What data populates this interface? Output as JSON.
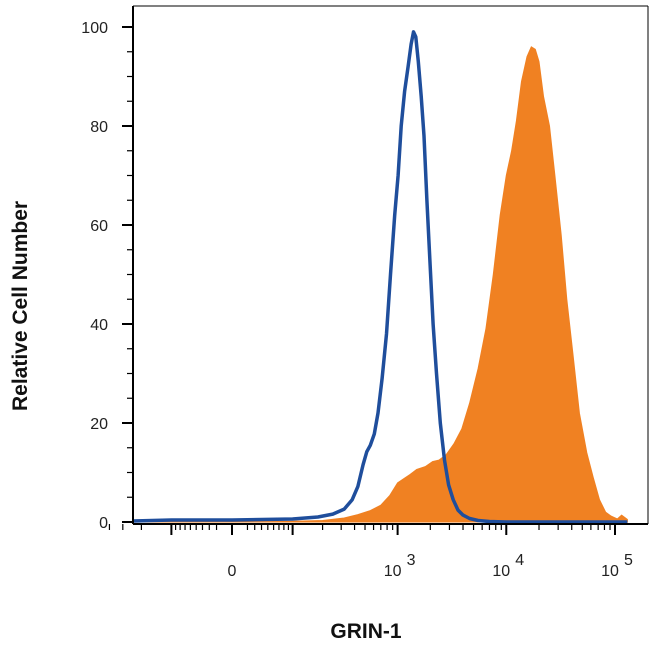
{
  "chart_data": {
    "type": "area",
    "title": "",
    "xlabel": "GRIN-1",
    "ylabel": "Relative Cell Number",
    "x_scale": "biexponential",
    "xlim": [
      -400,
      130000
    ],
    "ylim": [
      0,
      100
    ],
    "x_ticks": [
      {
        "value": 0,
        "label": "0",
        "exp": ""
      },
      {
        "value": 1000,
        "label": "10",
        "exp": "3"
      },
      {
        "value": 10000,
        "label": "10",
        "exp": "4"
      },
      {
        "value": 100000,
        "label": "10",
        "exp": "5"
      }
    ],
    "y_ticks": [
      0,
      20,
      40,
      60,
      80,
      100
    ],
    "grid": false,
    "series": [
      {
        "style": "filled",
        "color": "#F08122",
        "points": [
          [
            -400,
            0
          ],
          [
            0,
            0
          ],
          [
            80,
            0.1
          ],
          [
            200,
            0.3
          ],
          [
            320,
            0.8
          ],
          [
            430,
            1.5
          ],
          [
            560,
            2.3
          ],
          [
            700,
            3.4
          ],
          [
            850,
            5.4
          ],
          [
            1000,
            7.9
          ],
          [
            1150,
            8.8
          ],
          [
            1300,
            9.6
          ],
          [
            1500,
            10.6
          ],
          [
            1800,
            11.2
          ],
          [
            2100,
            12.2
          ],
          [
            2400,
            12.5
          ],
          [
            2800,
            13.6
          ],
          [
            3300,
            15.8
          ],
          [
            3900,
            18.8
          ],
          [
            4600,
            24
          ],
          [
            5500,
            31
          ],
          [
            6500,
            39
          ],
          [
            7600,
            50
          ],
          [
            8800,
            62
          ],
          [
            10000,
            70
          ],
          [
            11200,
            75
          ],
          [
            12400,
            81
          ],
          [
            13800,
            89
          ],
          [
            15500,
            94
          ],
          [
            17000,
            96
          ],
          [
            18500,
            95.5
          ],
          [
            20000,
            93
          ],
          [
            22000,
            86
          ],
          [
            25000,
            80
          ],
          [
            28000,
            70
          ],
          [
            32000,
            58
          ],
          [
            36000,
            45
          ],
          [
            41000,
            34
          ],
          [
            47000,
            22
          ],
          [
            55000,
            14
          ],
          [
            63000,
            9
          ],
          [
            72000,
            4.5
          ],
          [
            82000,
            2
          ],
          [
            92000,
            1.2
          ],
          [
            105000,
            0.6
          ],
          [
            115000,
            1.4
          ],
          [
            125000,
            0.8
          ],
          [
            130000,
            0.5
          ]
        ]
      },
      {
        "style": "outline",
        "color": "#1F4E9C",
        "points": [
          [
            -400,
            0.3
          ],
          [
            -250,
            0.2
          ],
          [
            -100,
            0.4
          ],
          [
            0,
            0.4
          ],
          [
            100,
            0.6
          ],
          [
            180,
            1.0
          ],
          [
            250,
            1.6
          ],
          [
            320,
            2.6
          ],
          [
            380,
            4.5
          ],
          [
            430,
            7.2
          ],
          [
            480,
            11.6
          ],
          [
            520,
            14.2
          ],
          [
            560,
            15.5
          ],
          [
            610,
            17.8
          ],
          [
            660,
            22
          ],
          [
            720,
            29
          ],
          [
            790,
            38
          ],
          [
            860,
            50
          ],
          [
            940,
            62
          ],
          [
            1010,
            70
          ],
          [
            1080,
            80
          ],
          [
            1160,
            87
          ],
          [
            1250,
            92
          ],
          [
            1330,
            96.5
          ],
          [
            1400,
            99
          ],
          [
            1470,
            98
          ],
          [
            1550,
            93
          ],
          [
            1650,
            86
          ],
          [
            1750,
            78
          ],
          [
            1860,
            65
          ],
          [
            1990,
            52
          ],
          [
            2120,
            40
          ],
          [
            2280,
            30
          ],
          [
            2470,
            20
          ],
          [
            2700,
            12.5
          ],
          [
            2950,
            7.5
          ],
          [
            3250,
            4.5
          ],
          [
            3600,
            2.4
          ],
          [
            4000,
            1.4
          ],
          [
            4600,
            0.7
          ],
          [
            5500,
            0.3
          ],
          [
            7000,
            0.1
          ],
          [
            10000,
            0
          ],
          [
            130000,
            0
          ]
        ]
      }
    ]
  }
}
